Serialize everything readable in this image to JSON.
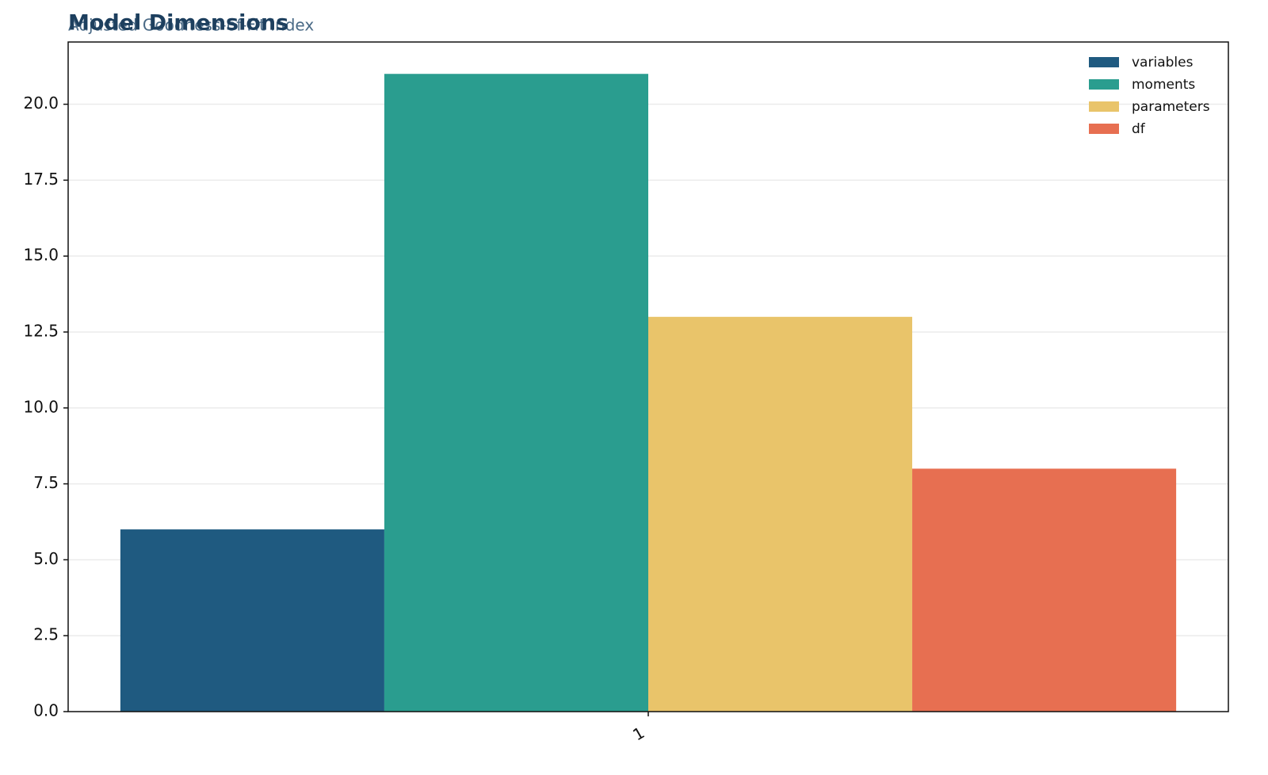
{
  "chart_data": {
    "type": "bar",
    "title": "Model Dimensions",
    "subtitle": "Adjusted Goodness-of-Fit Index",
    "categories": [
      "1"
    ],
    "series": [
      {
        "name": "variables",
        "color": "#1f5a80",
        "values": [
          6
        ]
      },
      {
        "name": "moments",
        "color": "#2a9d8f",
        "values": [
          21
        ]
      },
      {
        "name": "parameters",
        "color": "#e9c46a",
        "values": [
          13
        ]
      },
      {
        "name": "df",
        "color": "#e76f51",
        "values": [
          8
        ]
      }
    ],
    "ylim": [
      0,
      22.05
    ],
    "yticks": [
      {
        "value": 0,
        "label": "0.0"
      },
      {
        "value": 2.5,
        "label": "2.5"
      },
      {
        "value": 5,
        "label": "5.0"
      },
      {
        "value": 7.5,
        "label": "7.5"
      },
      {
        "value": 10,
        "label": "10.0"
      },
      {
        "value": 12.5,
        "label": "12.5"
      },
      {
        "value": 15,
        "label": "15.0"
      },
      {
        "value": 17.5,
        "label": "17.5"
      },
      {
        "value": 20,
        "label": "20.0"
      }
    ],
    "grid": true,
    "legend": "upper right"
  }
}
